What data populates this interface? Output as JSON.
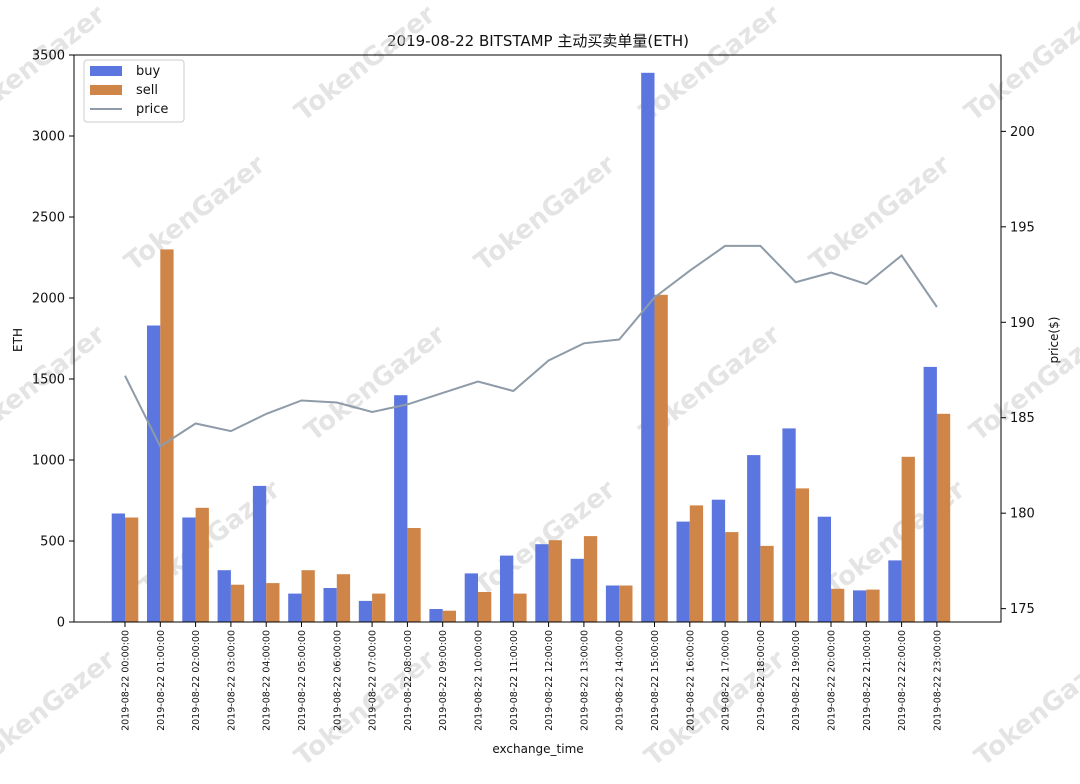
{
  "chart_data": {
    "type": "bar",
    "title": "2019-08-22 BITSTAMP 主动买卖单量(ETH)",
    "xlabel": "exchange_time",
    "ylabel": "ETH",
    "y2label": "price($)",
    "ylim": [
      0,
      3500
    ],
    "yticks": [
      0,
      500,
      1000,
      1500,
      2000,
      2500,
      3000,
      3500
    ],
    "y2lim": [
      174.3,
      204.0
    ],
    "y2ticks": [
      175,
      180,
      185,
      190,
      195,
      200
    ],
    "categories": [
      "2019-08-22 00:00:00",
      "2019-08-22 01:00:00",
      "2019-08-22 02:00:00",
      "2019-08-22 03:00:00",
      "2019-08-22 04:00:00",
      "2019-08-22 05:00:00",
      "2019-08-22 06:00:00",
      "2019-08-22 07:00:00",
      "2019-08-22 08:00:00",
      "2019-08-22 09:00:00",
      "2019-08-22 10:00:00",
      "2019-08-22 11:00:00",
      "2019-08-22 12:00:00",
      "2019-08-22 13:00:00",
      "2019-08-22 14:00:00",
      "2019-08-22 15:00:00",
      "2019-08-22 16:00:00",
      "2019-08-22 17:00:00",
      "2019-08-22 18:00:00",
      "2019-08-22 19:00:00",
      "2019-08-22 20:00:00",
      "2019-08-22 21:00:00",
      "2019-08-22 22:00:00",
      "2019-08-22 23:00:00"
    ],
    "series": [
      {
        "name": "buy",
        "color": "#5b76de",
        "values": [
          670,
          1830,
          645,
          320,
          840,
          175,
          210,
          130,
          1400,
          80,
          300,
          410,
          480,
          390,
          225,
          3390,
          620,
          755,
          1030,
          1195,
          650,
          195,
          380,
          1575
        ]
      },
      {
        "name": "sell",
        "color": "#d08548",
        "values": [
          645,
          2300,
          705,
          230,
          240,
          320,
          295,
          175,
          580,
          70,
          185,
          175,
          505,
          530,
          225,
          2020,
          720,
          555,
          470,
          825,
          205,
          200,
          1020,
          1285
        ]
      },
      {
        "name": "price",
        "color": "#8e9ba8",
        "axis": "right",
        "values": [
          187.2,
          183.5,
          184.7,
          184.3,
          185.2,
          185.9,
          185.8,
          185.3,
          185.7,
          186.3,
          186.9,
          186.4,
          188.0,
          188.9,
          189.1,
          191.3,
          192.7,
          194.0,
          194.0,
          192.1,
          192.6,
          192.0,
          193.5,
          190.8
        ]
      }
    ],
    "legend": {
      "position": "top-left"
    },
    "grid": false
  },
  "watermark": "TokenGazer"
}
